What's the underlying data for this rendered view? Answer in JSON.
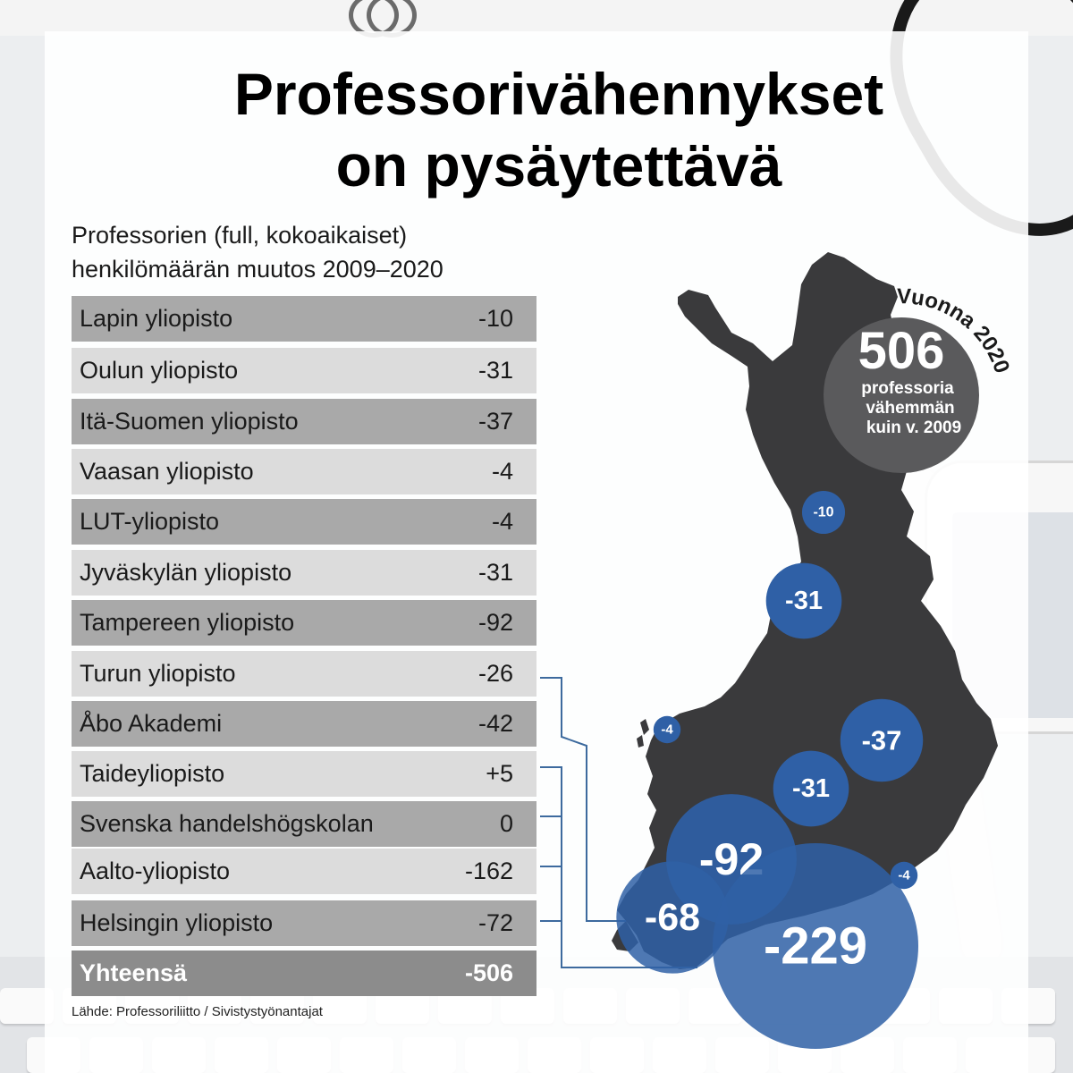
{
  "header": {
    "title_line1": "Professorivähennykset",
    "title_line2": "on pysäytettävä",
    "subtitle_line1": "Professorien (full, kokoaikaiset)",
    "subtitle_line2": "henkilömäärän muutos 2009–2020"
  },
  "badge": {
    "arc_text": "Vuonna 2020",
    "number": "506",
    "line1": "professoria",
    "line2": "vähemmän",
    "line3": "kuin v. 2009"
  },
  "source": "Lähde: Professoriliitto / Sivistystyönantajat",
  "colors": {
    "map": "#3a3a3c",
    "bubble": "#2f60a6",
    "badge": "#5a5a5c",
    "row_dark": "#a9a9a9",
    "row_light": "#dcdcdc",
    "row_total": "#8c8c8c",
    "connector": "#3d6a9e"
  },
  "chart_data": {
    "type": "table",
    "title": "Professorivähennykset on pysäytettävä",
    "subtitle": "Professorien (full, kokoaikaiset) henkilömäärän muutos 2009–2020",
    "rows": [
      {
        "name": "Lapin yliopisto",
        "value": "-10"
      },
      {
        "name": "Oulun yliopisto",
        "value": "-31"
      },
      {
        "name": "Itä-Suomen yliopisto",
        "value": "-37"
      },
      {
        "name": "Vaasan yliopisto",
        "value": "-4"
      },
      {
        "name": "LUT-yliopisto",
        "value": "-4"
      },
      {
        "name": "Jyväskylän yliopisto",
        "value": "-31"
      },
      {
        "name": "Tampereen yliopisto",
        "value": "-92"
      },
      {
        "name": "Turun yliopisto",
        "value": "-26"
      },
      {
        "name": "Åbo Akademi",
        "value": "-42"
      },
      {
        "name": "Taideyliopisto",
        "value": "+5"
      },
      {
        "name": "Svenska handelshögskolan",
        "value": "0"
      },
      {
        "name": "Aalto-yliopisto",
        "value": "-162"
      },
      {
        "name": "Helsingin yliopisto",
        "value": "-72"
      }
    ],
    "total": {
      "name": "Yhteensä",
      "value": "-506"
    },
    "map_bubbles": [
      {
        "label": "-10",
        "value": 10
      },
      {
        "label": "-31",
        "value": 31
      },
      {
        "label": "-4",
        "value": 4
      },
      {
        "label": "-37",
        "value": 37
      },
      {
        "label": "-31",
        "value": 31
      },
      {
        "label": "-92",
        "value": 92
      },
      {
        "label": "-68",
        "value": 68
      },
      {
        "label": "-4",
        "value": 4
      },
      {
        "label": "-229",
        "value": 229
      }
    ]
  }
}
